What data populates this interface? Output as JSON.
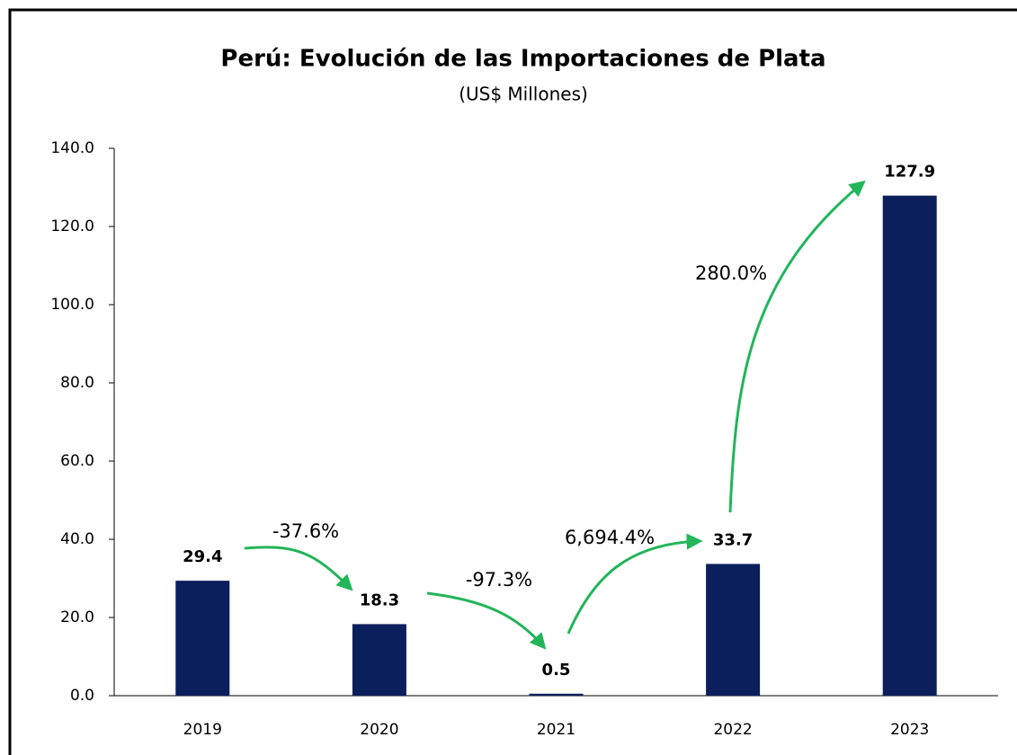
{
  "chart_data": {
    "type": "bar",
    "title": "Perú: Evolución de las Importaciones de Plata",
    "subtitle": "(US$ Millones)",
    "categories": [
      "2019",
      "2020",
      "2021",
      "2022",
      "2023"
    ],
    "values": [
      29.4,
      18.3,
      0.5,
      33.7,
      127.9
    ],
    "color": "#0b1f5c",
    "ylim": [
      0,
      140
    ],
    "yticks": [
      {
        "value": 0,
        "label": "0.0"
      },
      {
        "value": 20,
        "label": "20.0"
      },
      {
        "value": 40,
        "label": "40.0"
      },
      {
        "value": 60,
        "label": "60.0"
      },
      {
        "value": 80,
        "label": "80.0"
      },
      {
        "value": 100,
        "label": "100.0"
      },
      {
        "value": 120,
        "label": "120.0"
      },
      {
        "value": 140,
        "label": "140.0"
      }
    ],
    "grid": false,
    "annotations": [
      "-37.6%",
      "-97.3%",
      "6,694.4%",
      "280.0%"
    ]
  }
}
